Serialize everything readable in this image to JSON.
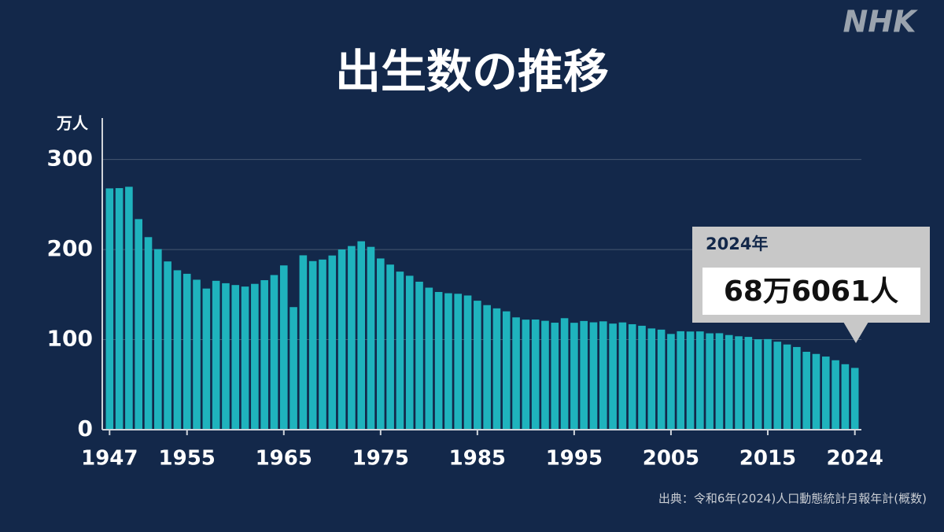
{
  "logo": "NHK",
  "chart_data": {
    "type": "bar",
    "title": "出生数の推移",
    "y_unit": "万人",
    "x": [
      1947,
      1948,
      1949,
      1950,
      1951,
      1952,
      1953,
      1954,
      1955,
      1956,
      1957,
      1958,
      1959,
      1960,
      1961,
      1962,
      1963,
      1964,
      1965,
      1966,
      1967,
      1968,
      1969,
      1970,
      1971,
      1972,
      1973,
      1974,
      1975,
      1976,
      1977,
      1978,
      1979,
      1980,
      1981,
      1982,
      1983,
      1984,
      1985,
      1986,
      1987,
      1988,
      1989,
      1990,
      1991,
      1992,
      1993,
      1994,
      1995,
      1996,
      1997,
      1998,
      1999,
      2000,
      2001,
      2002,
      2003,
      2004,
      2005,
      2006,
      2007,
      2008,
      2009,
      2010,
      2011,
      2012,
      2013,
      2014,
      2015,
      2016,
      2017,
      2018,
      2019,
      2020,
      2021,
      2022,
      2023,
      2024
    ],
    "values": [
      267.9,
      268.2,
      269.7,
      233.8,
      213.8,
      200.5,
      186.8,
      177.0,
      173.1,
      166.5,
      156.7,
      165.3,
      162.6,
      160.6,
      158.9,
      161.9,
      166.0,
      171.7,
      182.4,
      136.1,
      193.6,
      187.2,
      188.9,
      193.4,
      200.1,
      203.9,
      209.2,
      203.0,
      190.1,
      183.3,
      175.5,
      170.9,
      164.3,
      157.7,
      152.9,
      151.5,
      150.9,
      149.0,
      143.2,
      138.3,
      134.7,
      131.4,
      124.7,
      122.2,
      122.3,
      120.9,
      118.8,
      123.8,
      118.7,
      120.7,
      119.2,
      120.3,
      117.8,
      119.1,
      117.1,
      115.4,
      112.4,
      111.1,
      106.3,
      109.3,
      109.0,
      109.1,
      107.0,
      107.1,
      105.1,
      103.7,
      103.0,
      100.4,
      100.6,
      97.7,
      94.6,
      91.8,
      86.5,
      84.1,
      81.2,
      77.1,
      72.7,
      68.6061
    ],
    "value_labels": [
      null,
      null,
      null,
      null,
      null,
      null,
      null,
      null,
      null,
      null,
      null,
      null,
      null,
      null,
      null,
      null,
      null,
      null,
      null,
      null,
      null,
      null,
      null,
      null,
      null,
      null,
      null,
      null,
      null,
      null,
      null,
      null,
      null,
      null,
      null,
      null,
      null,
      null,
      null,
      null,
      null,
      null,
      null,
      null,
      null,
      null,
      null,
      null,
      null,
      null,
      null,
      null,
      null,
      null,
      null,
      null,
      null,
      null,
      null,
      null,
      null,
      null,
      null,
      null,
      null,
      null,
      null,
      null,
      null,
      null,
      null,
      null,
      null,
      null,
      null,
      null,
      null,
      "68万6061人"
    ],
    "annotation": "2024年",
    "color": "#1fb3bd",
    "xlim": [
      1946,
      2025
    ],
    "xticks": [
      1947,
      1955,
      1965,
      1975,
      1985,
      1995,
      2005,
      2015,
      2024
    ],
    "ylim": [
      0,
      346
    ],
    "yticks": [
      0,
      100,
      200,
      300
    ],
    "grid": true,
    "source": "出典：令和6年(2024)人口動態統計月報年計(概数)"
  }
}
